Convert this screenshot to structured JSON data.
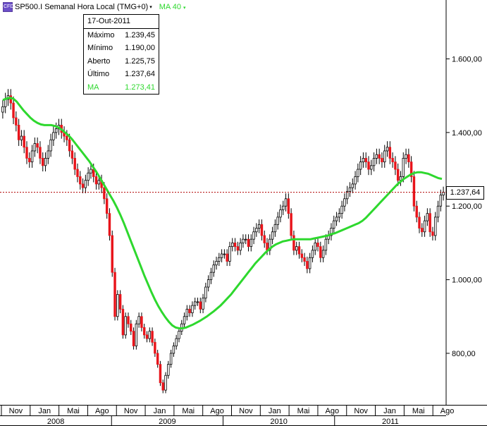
{
  "header": {
    "symbol_icon": "CFD",
    "symbol_title": "SP500.I Semanal Hora Local (TMG+0)",
    "ma_label": "MA 40",
    "caret": "▾"
  },
  "info_box": {
    "date": "17-Out-2011",
    "rows": [
      {
        "label": "Máximo",
        "value": "1.239,45"
      },
      {
        "label": "Mínimo",
        "value": "1.190,00"
      },
      {
        "label": "Aberto",
        "value": "1.225,75"
      },
      {
        "label": "Último",
        "value": "1.237,64"
      }
    ],
    "ma": {
      "label": "MA",
      "value": "1.273,41"
    }
  },
  "last_price_tag": "1.237,64",
  "colors": {
    "up_candle": "#ffffff",
    "down_candle": "#e8141b",
    "ma_line": "#2ed82e",
    "last_price_line": "#b00000",
    "ma_swatch": "#2ed82e"
  },
  "chart_data": {
    "type": "candlestick",
    "title": "SP500.I Semanal Hora Local (TMG+0)",
    "timeframe": "weekly",
    "ylim": [
      660,
      1760
    ],
    "y_ticks": [
      {
        "value": 800,
        "label": "800,00"
      },
      {
        "value": 1000,
        "label": "1.000,00"
      },
      {
        "value": 1200,
        "label": "1.200,00"
      },
      {
        "value": 1400,
        "label": "1.400,00"
      },
      {
        "value": 1600,
        "label": "1.600,00"
      }
    ],
    "x_month_labels": [
      "Nov",
      "Jan",
      "Mai",
      "Ago",
      "Nov",
      "Jan",
      "Mai",
      "Ago",
      "Nov",
      "Jan",
      "Mai",
      "Ago",
      "Nov",
      "Jan",
      "Mai",
      "Ago"
    ],
    "x_year_labels": [
      "2008",
      "2009",
      "2010",
      "2011"
    ],
    "last_price": 1237.64,
    "series_close": [
      1470,
      1490,
      1500,
      1480,
      1440,
      1420,
      1380,
      1390,
      1360,
      1330,
      1320,
      1350,
      1370,
      1360,
      1330,
      1310,
      1330,
      1350,
      1380,
      1400,
      1410,
      1420,
      1400,
      1390,
      1380,
      1350,
      1330,
      1300,
      1280,
      1260,
      1250,
      1270,
      1290,
      1300,
      1280,
      1260,
      1270,
      1250,
      1220,
      1180,
      1120,
      1020,
      900,
      960,
      920,
      850,
      900,
      880,
      860,
      820,
      880,
      900,
      870,
      850,
      840,
      860,
      830,
      800,
      770,
      720,
      700,
      740,
      770,
      800,
      820,
      840,
      860,
      880,
      900,
      920,
      910,
      930,
      940,
      940,
      920,
      950,
      980,
      1000,
      1020,
      1040,
      1050,
      1060,
      1070,
      1070,
      1050,
      1090,
      1100,
      1090,
      1080,
      1100,
      1110,
      1110,
      1090,
      1110,
      1130,
      1140,
      1150,
      1120,
      1100,
      1080,
      1110,
      1130,
      1150,
      1170,
      1190,
      1200,
      1220,
      1180,
      1120,
      1080,
      1090,
      1070,
      1060,
      1050,
      1030,
      1060,
      1080,
      1100,
      1090,
      1060,
      1080,
      1110,
      1120,
      1140,
      1160,
      1170,
      1180,
      1200,
      1220,
      1240,
      1250,
      1260,
      1280,
      1300,
      1320,
      1330,
      1320,
      1300,
      1310,
      1330,
      1340,
      1330,
      1320,
      1350,
      1360,
      1330,
      1320,
      1300,
      1270,
      1280,
      1330,
      1340,
      1320,
      1280,
      1200,
      1170,
      1140,
      1130,
      1160,
      1180,
      1130,
      1120,
      1170,
      1200,
      1230,
      1238
    ],
    "series_ma": [
      1488,
      1492,
      1494,
      1492,
      1484,
      1472,
      1460,
      1450,
      1440,
      1432,
      1426,
      1422,
      1420,
      1420,
      1420,
      1418,
      1414,
      1408,
      1400,
      1392,
      1382,
      1370,
      1358,
      1346,
      1334,
      1322,
      1308,
      1294,
      1278,
      1262,
      1246,
      1230,
      1214,
      1196,
      1176,
      1154,
      1130,
      1106,
      1082,
      1058,
      1034,
      1010,
      988,
      966,
      946,
      928,
      912,
      898,
      886,
      876,
      870,
      868,
      868,
      870,
      874,
      878,
      883,
      888,
      894,
      900,
      907,
      914,
      922,
      930,
      940,
      950,
      960,
      972,
      984,
      996,
      1008,
      1020,
      1032,
      1044,
      1054,
      1064,
      1074,
      1082,
      1090,
      1096,
      1100,
      1104,
      1106,
      1108,
      1110,
      1110,
      1110,
      1110,
      1110,
      1110,
      1112,
      1114,
      1116,
      1118,
      1120,
      1124,
      1126,
      1130,
      1134,
      1138,
      1142,
      1146,
      1150,
      1154,
      1160,
      1168,
      1178,
      1188,
      1198,
      1208,
      1218,
      1228,
      1238,
      1248,
      1258,
      1266,
      1274,
      1280,
      1286,
      1290,
      1292,
      1292,
      1290,
      1288,
      1284,
      1280,
      1276,
      1274
    ]
  }
}
